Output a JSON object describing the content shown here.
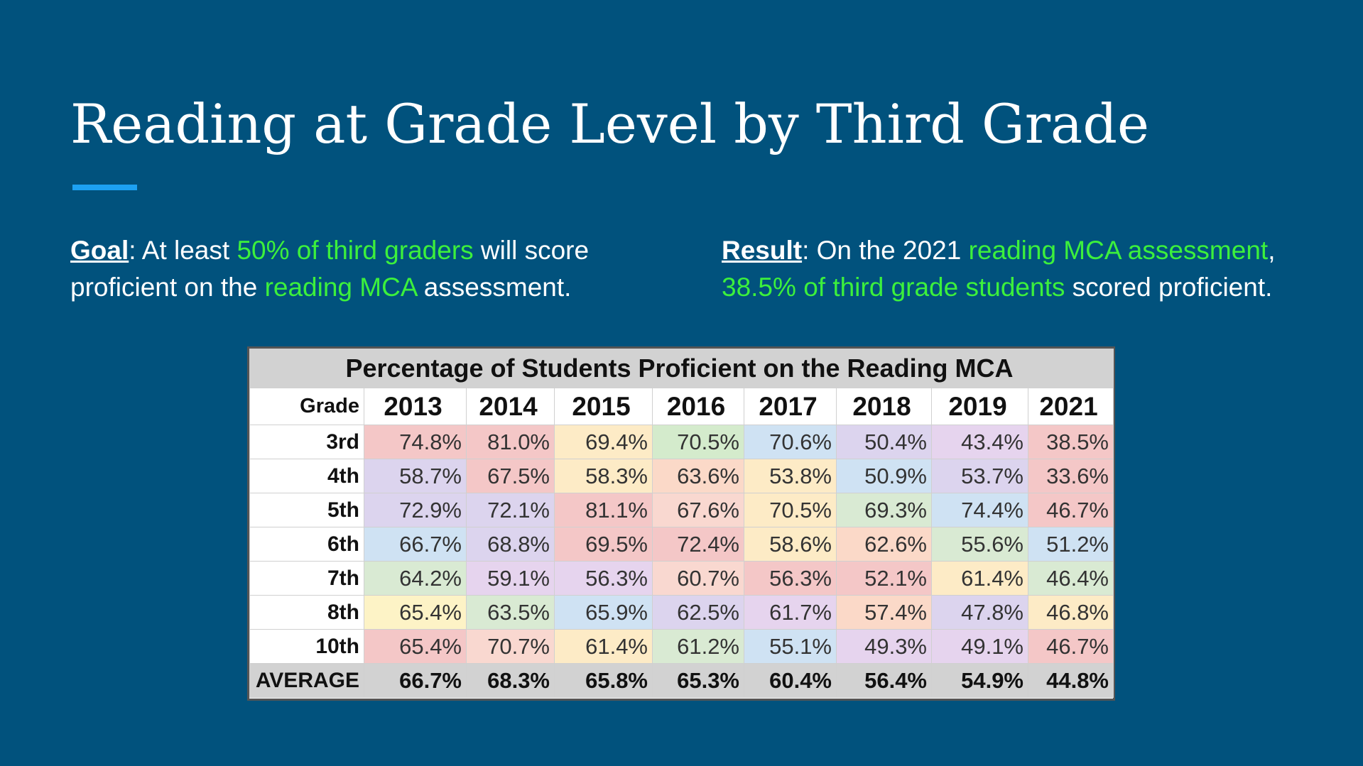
{
  "slide": {
    "title": "Reading at Grade Level by Third Grade"
  },
  "goal": {
    "lead": "Goal",
    "t1": ": At least ",
    "h1": "50% of third graders",
    "t2": " will score",
    "t3": "proficient on the ",
    "h2": "reading MCA",
    "t4": " assessment."
  },
  "result": {
    "lead": "Result",
    "t1": ": On the 2021 ",
    "h1": "reading MCA assessment",
    "t2": ",",
    "h2": "38.5% of third grade students",
    "t3": " scored proficient."
  },
  "table": {
    "caption": "Percentage of Students Proficient on the Reading MCA",
    "grade_header": "Grade",
    "years": [
      "2013",
      "2014",
      "2015",
      "2016",
      "2017",
      "2018",
      "2019",
      "2021"
    ],
    "rows": [
      {
        "grade": "3rd",
        "values": [
          "74.8%",
          "81.0%",
          "69.4%",
          "70.5%",
          "70.6%",
          "50.4%",
          "43.4%",
          "38.5%"
        ]
      },
      {
        "grade": "4th",
        "values": [
          "58.7%",
          "67.5%",
          "58.3%",
          "63.6%",
          "53.8%",
          "50.9%",
          "53.7%",
          "33.6%"
        ]
      },
      {
        "grade": "5th",
        "values": [
          "72.9%",
          "72.1%",
          "81.1%",
          "67.6%",
          "70.5%",
          "69.3%",
          "74.4%",
          "46.7%"
        ]
      },
      {
        "grade": "6th",
        "values": [
          "66.7%",
          "68.8%",
          "69.5%",
          "72.4%",
          "58.6%",
          "62.6%",
          "55.6%",
          "51.2%"
        ]
      },
      {
        "grade": "7th",
        "values": [
          "64.2%",
          "59.1%",
          "56.3%",
          "60.7%",
          "56.3%",
          "52.1%",
          "61.4%",
          "46.4%"
        ]
      },
      {
        "grade": "8th",
        "values": [
          "65.4%",
          "63.5%",
          "65.9%",
          "62.5%",
          "61.7%",
          "57.4%",
          "47.8%",
          "46.8%"
        ]
      },
      {
        "grade": "10th",
        "values": [
          "65.4%",
          "70.7%",
          "61.4%",
          "61.2%",
          "55.1%",
          "49.3%",
          "49.1%",
          "46.7%"
        ]
      }
    ],
    "average": {
      "label": "AVERAGE",
      "values": [
        "66.7%",
        "68.3%",
        "65.8%",
        "65.3%",
        "60.4%",
        "56.4%",
        "54.9%",
        "44.8%"
      ]
    },
    "cell_colors": [
      [
        "#f4c7c7",
        "#f4c7c7",
        "#fdebc6",
        "#d4ebcc",
        "#cfe2f3",
        "#dcd4ee",
        "#e6d4ee",
        "#f4c7c7"
      ],
      [
        "#dcd4ee",
        "#f4c7c7",
        "#fdebc6",
        "#fbd9c8",
        "#fdebc6",
        "#cfe2f3",
        "#dcd4ee",
        "#f4c7c7"
      ],
      [
        "#dcd4ee",
        "#dcd4ee",
        "#f4c7c7",
        "#f9d8d0",
        "#fdebc6",
        "#d9ead3",
        "#cfe2f3",
        "#f4c7c7"
      ],
      [
        "#cfe2f3",
        "#dcd4ee",
        "#f4c7c7",
        "#f4c7c7",
        "#fdebc6",
        "#fbd9c8",
        "#d9ead3",
        "#cfe2f3"
      ],
      [
        "#d9ead3",
        "#e6d4ee",
        "#e6d4ee",
        "#f9d8d0",
        "#f4c7c7",
        "#f4c7c7",
        "#fdebc6",
        "#d9ead3"
      ],
      [
        "#fdf3c6",
        "#d9ead3",
        "#cfe2f3",
        "#dcd4ee",
        "#e6d4ee",
        "#fbd9c8",
        "#dcd4ee",
        "#fdebc6"
      ],
      [
        "#f4c7c7",
        "#f9d8d0",
        "#fdebc6",
        "#d9ead3",
        "#cfe2f3",
        "#e6d4ee",
        "#e6d4ee",
        "#f4c7c7"
      ]
    ]
  },
  "colors": {
    "background": "#01527d",
    "accent_bar": "#1da1f2",
    "highlight_text": "#3cf03c"
  }
}
